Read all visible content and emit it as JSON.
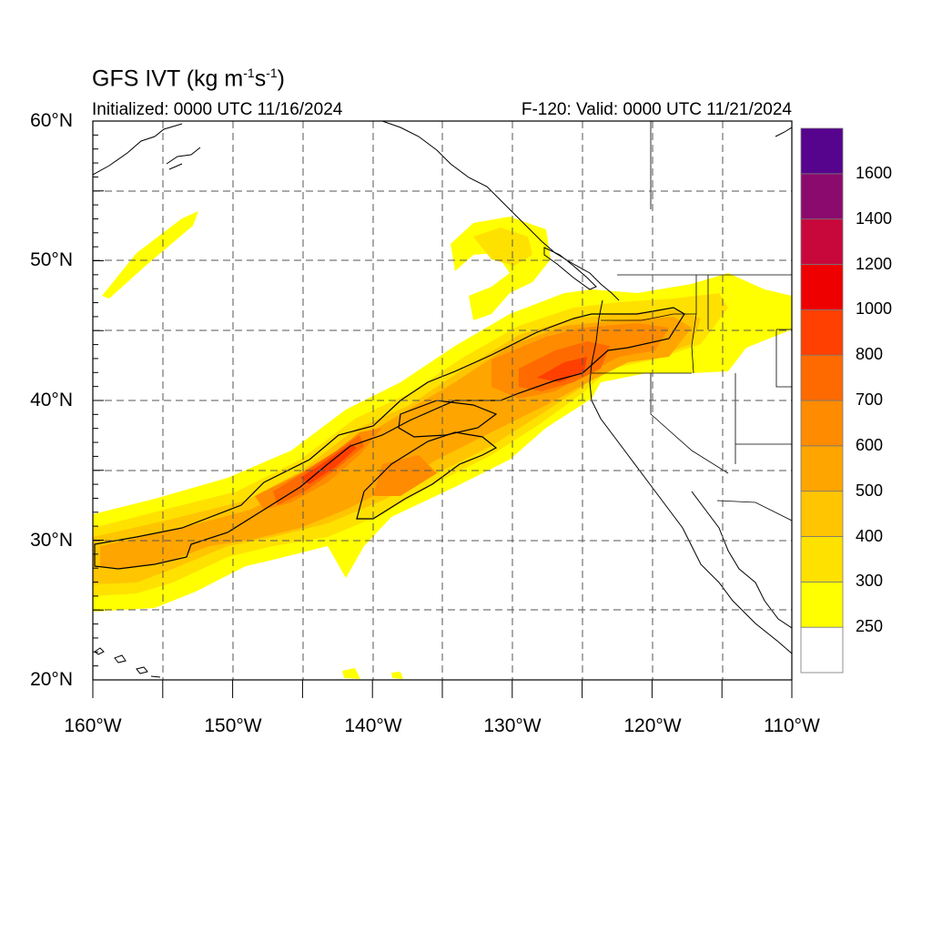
{
  "title": {
    "text": "GFS IVT (kg m",
    "exp1": "-1",
    "unit2": "s",
    "exp2": "-1",
    "close": ")"
  },
  "subtitle_left": "Initialized: 0000 UTC 11/16/2024",
  "subtitle_right": "F-120: Valid: 0000 UTC 11/21/2024",
  "map": {
    "extent": {
      "lon_min": -160,
      "lon_max": -110,
      "lat_min": 20,
      "lat_max": 60
    },
    "lat_labels": [
      "60°N",
      "50°N",
      "40°N",
      "30°N",
      "20°N"
    ],
    "lon_labels": [
      "160°W",
      "150°W",
      "140°W",
      "130°W",
      "120°W",
      "110°W"
    ],
    "gridlines": "dashed"
  },
  "colorbar": {
    "levels": [
      250,
      300,
      400,
      500,
      600,
      700,
      800,
      1000,
      1200,
      1400,
      1600
    ],
    "labels": [
      "250",
      "300",
      "400",
      "500",
      "600",
      "700",
      "800",
      "1000",
      "1200",
      "1400",
      "1600"
    ],
    "colors": [
      "#ffffff",
      "#ffff00",
      "#ffe100",
      "#ffc500",
      "#ffa500",
      "#ff8b00",
      "#ff6a00",
      "#ff4000",
      "#ee0000",
      "#c8083b",
      "#8b0a6e",
      "#56038e"
    ]
  }
}
